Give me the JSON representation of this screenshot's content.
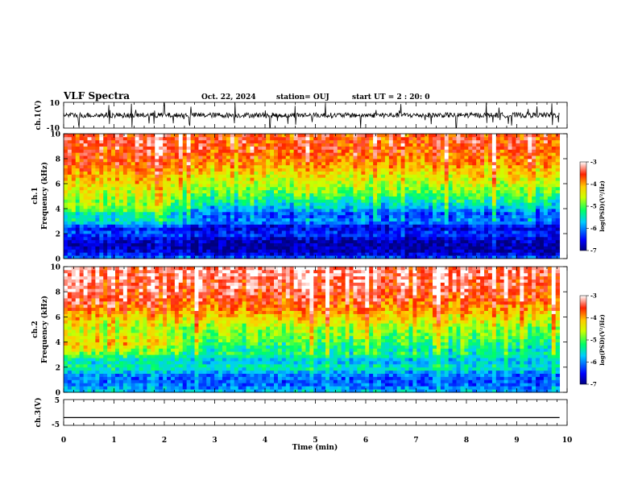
{
  "header": {
    "title": "VLF Spectra",
    "date": "Oct. 22, 2024",
    "station": "station= OUJ",
    "start_ut": "start UT =  2 : 20: 0"
  },
  "colors": {
    "spectral": [
      "#00007f",
      "#0000ff",
      "#00aaff",
      "#00ffff",
      "#00ff55",
      "#aaff00",
      "#ffff00",
      "#ffaa00",
      "#ff0000",
      "#7f0000"
    ]
  },
  "chart_data": [
    {
      "type": "line",
      "panel": "ch1-waveform",
      "ylabel": "ch.1(V)",
      "ytick_labels": [
        "10",
        "-10"
      ],
      "ylim": [
        -10,
        10
      ],
      "xlim": [
        0,
        10
      ],
      "baseline": 0,
      "noise_band": [
        -2,
        2
      ],
      "spike_times_min": [
        0.3,
        0.9,
        1.35,
        1.8,
        2.0,
        2.5,
        3.4,
        4.1,
        4.6,
        5.2,
        5.9,
        6.7,
        7.3,
        7.8,
        8.4,
        8.9,
        9.4,
        9.7
      ]
    },
    {
      "type": "heatmap",
      "panel": "ch1-spectrogram",
      "ylabel": "ch.1\nFrequency (kHz)",
      "ylabel_lines": [
        "ch.1",
        "Frequency (kHz)"
      ],
      "xlim": [
        0,
        10
      ],
      "ylim": [
        0,
        10
      ],
      "yticks": [
        0,
        2,
        4,
        6,
        8,
        10
      ],
      "x_data_extent": [
        0,
        9.85
      ],
      "colorbar": {
        "range": [
          -7,
          -3
        ],
        "ticks": [
          "-3",
          "-4",
          "-5",
          "-6",
          "-7"
        ],
        "label": "log(PSD)(V²/Hz)"
      },
      "profile_freq_khz": [
        0,
        0.5,
        1,
        1.5,
        2,
        2.5,
        3,
        3.5,
        4,
        4.5,
        5,
        5.5,
        6,
        6.5,
        7,
        7.5,
        8,
        8.5,
        9,
        9.5,
        10
      ],
      "profile_log_psd_early": [
        -6.0,
        -6.6,
        -6.8,
        -6.7,
        -6.2,
        -6.5,
        -5.4,
        -5.6,
        -4.9,
        -4.8,
        -4.6,
        -4.5,
        -4.3,
        -4.1,
        -4.0,
        -3.8,
        -3.7,
        -3.6,
        -3.6,
        -3.5,
        -3.5
      ],
      "profile_log_psd_late": [
        -6.1,
        -6.8,
        -6.9,
        -6.8,
        -6.3,
        -6.7,
        -5.9,
        -6.2,
        -5.8,
        -5.4,
        -5.1,
        -4.8,
        -4.6,
        -4.4,
        -4.2,
        -4.0,
        -3.8,
        -3.7,
        -3.6,
        -3.6,
        -3.6
      ],
      "transition_time_min": 2.3
    },
    {
      "type": "heatmap",
      "panel": "ch2-spectrogram",
      "ylabel": "ch.2\nFrequency (kHz)",
      "ylabel_lines": [
        "ch.2",
        "Frequency (kHz)"
      ],
      "xlim": [
        0,
        10
      ],
      "ylim": [
        0,
        10
      ],
      "yticks": [
        0,
        2,
        4,
        6,
        8,
        10
      ],
      "x_data_extent": [
        0,
        9.85
      ],
      "colorbar": {
        "range": [
          -7,
          -3
        ],
        "ticks": [
          "-3",
          "-4",
          "-5",
          "-6",
          "-7"
        ],
        "label": "log(PSD)(V²/Hz)"
      },
      "profile_freq_khz": [
        0,
        0.5,
        1,
        1.5,
        2,
        2.5,
        3,
        3.5,
        4,
        4.5,
        5,
        5.5,
        6,
        6.5,
        7,
        7.5,
        8,
        8.5,
        9,
        9.5,
        10
      ],
      "profile_log_psd_early": [
        -5.6,
        -6.0,
        -6.1,
        -5.9,
        -5.3,
        -5.6,
        -5.0,
        -4.5,
        -4.2,
        -4.5,
        -4.6,
        -4.4,
        -4.2,
        -3.9,
        -3.6,
        -3.5,
        -3.4,
        -3.4,
        -3.3,
        -3.3,
        -3.3
      ],
      "profile_log_psd_late": [
        -5.7,
        -6.1,
        -6.2,
        -6.0,
        -5.4,
        -5.8,
        -5.3,
        -5.4,
        -5.1,
        -4.9,
        -4.8,
        -4.5,
        -4.2,
        -4.0,
        -3.8,
        -3.6,
        -3.5,
        -3.4,
        -3.4,
        -3.3,
        -3.3
      ],
      "transition_time_min": 2.3
    },
    {
      "type": "line",
      "panel": "ch3-waveform",
      "ylabel": "ch.3(V)",
      "ytick_labels": [
        "5",
        "-5"
      ],
      "ylim": [
        -5,
        5
      ],
      "xlim": [
        0,
        10
      ],
      "constant_value": -2
    }
  ],
  "xaxis": {
    "label": "Time (min)",
    "tick_labels": [
      "0",
      "1",
      "2",
      "3",
      "4",
      "5",
      "6",
      "7",
      "8",
      "9",
      "10"
    ]
  }
}
